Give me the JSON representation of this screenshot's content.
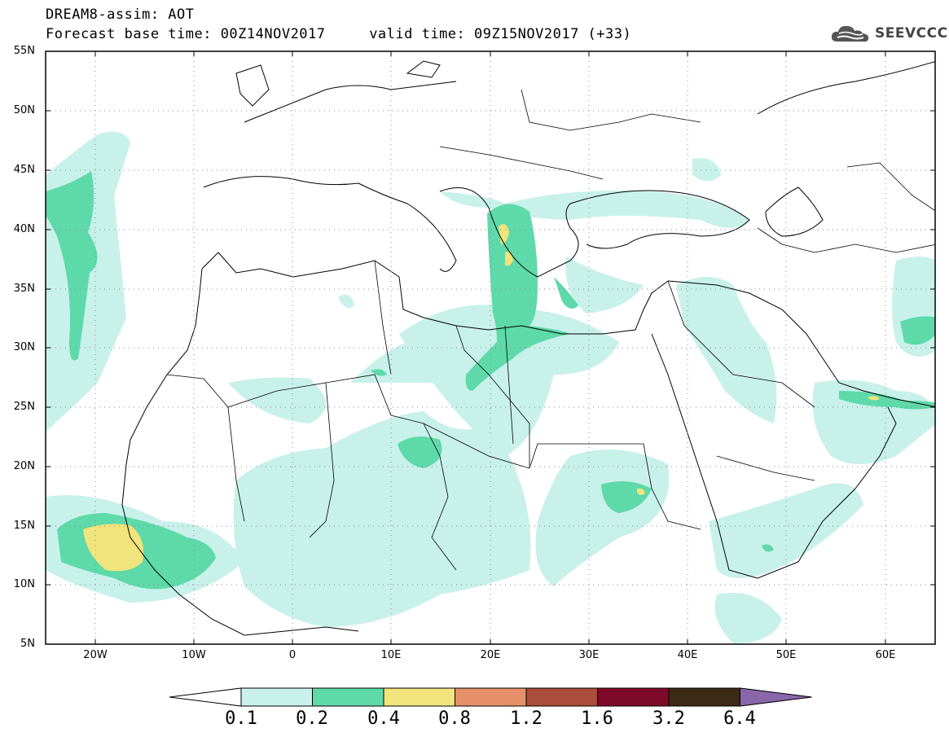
{
  "title": {
    "line1": "DREAM8-assim: AOT",
    "line2": "Forecast base time: 00Z14NOV2017     valid time: 09Z15NOV2017 (+33)"
  },
  "logo": {
    "text": "SEEVCCC",
    "icon": "cloud-icon"
  },
  "map": {
    "variable": "AOT",
    "lat_labels": [
      "55N",
      "50N",
      "45N",
      "40N",
      "35N",
      "30N",
      "25N",
      "20N",
      "15N",
      "10N",
      "5N"
    ],
    "lon_labels": [
      "20W",
      "10W",
      "0",
      "10E",
      "20E",
      "30E",
      "40E",
      "50E",
      "60E"
    ],
    "lat_range": [
      5,
      55
    ],
    "lon_range": [
      -25,
      65
    ],
    "grid": "dotted"
  },
  "colorbar": {
    "labels": [
      "0.1",
      "0.2",
      "0.4",
      "0.8",
      "1.2",
      "1.6",
      "3.2",
      "6.4"
    ],
    "colors": [
      "#ffffff",
      "#c8f1ea",
      "#5ed9a9",
      "#f2e47c",
      "#e59068",
      "#aa4d3d",
      "#7d0a28",
      "#3d2a14",
      "#8b66aa"
    ]
  }
}
